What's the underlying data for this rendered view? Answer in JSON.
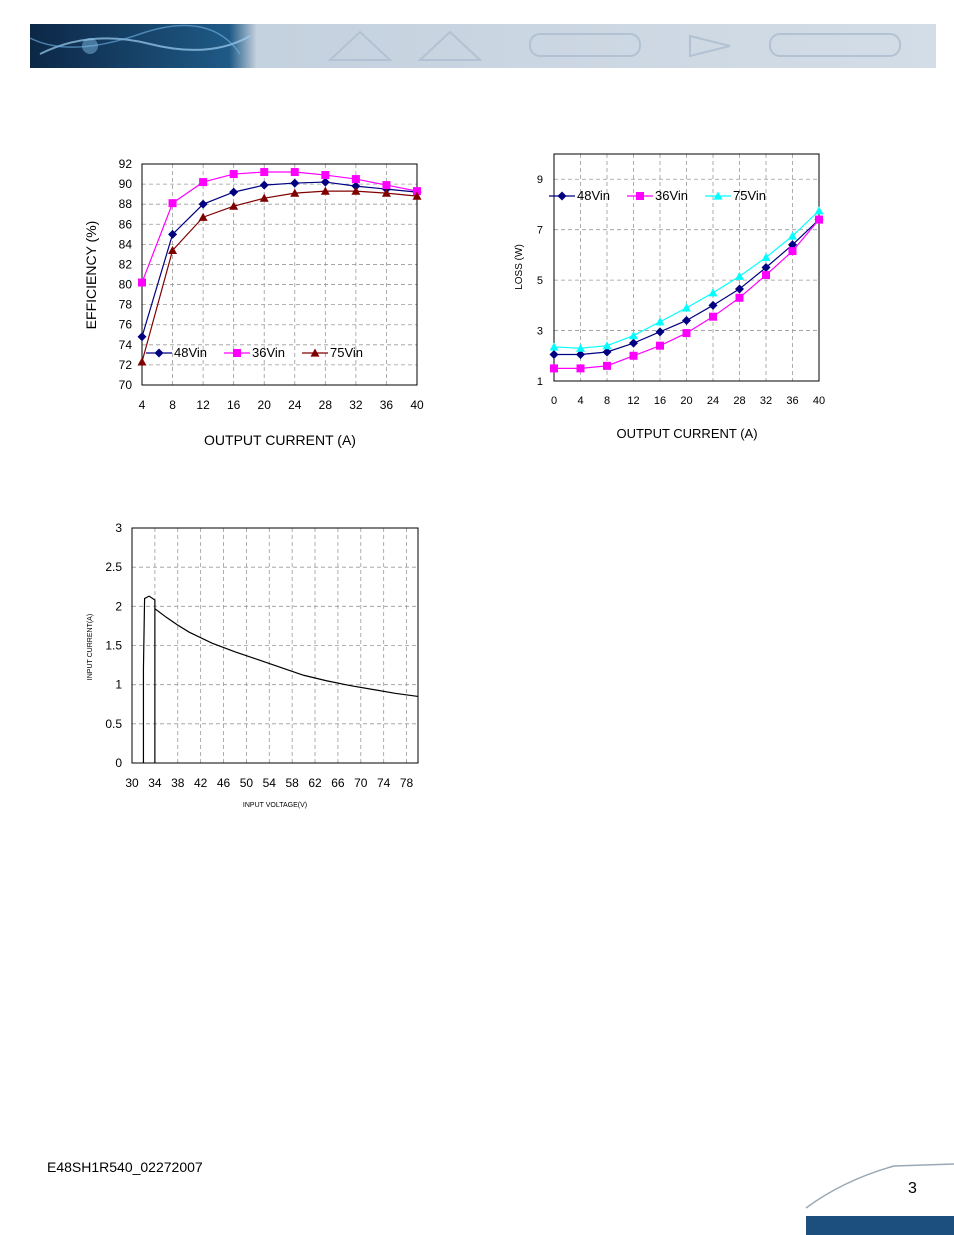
{
  "footer": {
    "doc_id": "E48SH1R540_02272007",
    "page_number": "3"
  },
  "colors": {
    "banner_dark": "#0f2f52",
    "banner_light": "#c9d6e3",
    "footer_bar": "#1d4f7e",
    "series_48": "#000080",
    "series_36": "#ff00ff",
    "series_75_eff": "#800000",
    "series_75_loss": "#00ffff"
  },
  "chart_data": [
    {
      "id": "efficiency",
      "type": "line",
      "title": "",
      "xlabel": "OUTPUT CURRENT (A)",
      "ylabel": "EFFICIENCY (%)",
      "x": [
        4,
        8,
        12,
        16,
        20,
        24,
        28,
        32,
        36,
        40
      ],
      "xlim": [
        4,
        40
      ],
      "ylim": [
        70,
        92
      ],
      "xticks": [
        "4",
        "8",
        "12",
        "16",
        "20",
        "24",
        "28",
        "32",
        "36",
        "40"
      ],
      "yticks": [
        "70",
        "72",
        "74",
        "76",
        "78",
        "80",
        "82",
        "84",
        "86",
        "88",
        "90",
        "92"
      ],
      "grid": true,
      "legend": "bottom",
      "series": [
        {
          "name": "48Vin",
          "color": "#000080",
          "marker": "diamond",
          "values": [
            74.8,
            85.0,
            88.0,
            89.2,
            89.9,
            90.1,
            90.2,
            89.8,
            89.5,
            89.2
          ]
        },
        {
          "name": "36Vin",
          "color": "#ff00ff",
          "marker": "square",
          "values": [
            80.2,
            88.1,
            90.2,
            91.0,
            91.2,
            91.2,
            90.9,
            90.5,
            89.9,
            89.3
          ]
        },
        {
          "name": "75Vin",
          "color": "#800000",
          "marker": "triangle",
          "values": [
            72.3,
            83.4,
            86.7,
            87.8,
            88.6,
            89.1,
            89.3,
            89.3,
            89.1,
            88.8
          ]
        }
      ]
    },
    {
      "id": "loss",
      "type": "line",
      "title": "",
      "xlabel": "OUTPUT CURRENT (A)",
      "ylabel": "LOSS (W)",
      "x": [
        0,
        4,
        8,
        12,
        16,
        20,
        24,
        28,
        32,
        36,
        40
      ],
      "xlim": [
        0,
        40
      ],
      "ylim": [
        1,
        10
      ],
      "xticks": [
        "0",
        "4",
        "8",
        "12",
        "16",
        "20",
        "24",
        "28",
        "32",
        "36",
        "40"
      ],
      "yticks": [
        "1",
        "3",
        "5",
        "7",
        "9"
      ],
      "grid": true,
      "legend": "top",
      "series": [
        {
          "name": "48Vin",
          "color": "#000080",
          "marker": "diamond",
          "values": [
            2.05,
            2.05,
            2.15,
            2.5,
            2.95,
            3.4,
            4.0,
            4.65,
            5.5,
            6.4,
            7.4
          ]
        },
        {
          "name": "36Vin",
          "color": "#ff00ff",
          "marker": "square",
          "values": [
            1.5,
            1.5,
            1.6,
            2.0,
            2.4,
            2.9,
            3.55,
            4.3,
            5.2,
            6.15,
            7.4
          ]
        },
        {
          "name": "75Vin",
          "color": "#00ffff",
          "marker": "triangle",
          "values": [
            2.35,
            2.3,
            2.4,
            2.8,
            3.35,
            3.9,
            4.5,
            5.15,
            5.9,
            6.75,
            7.75
          ]
        }
      ]
    },
    {
      "id": "input-current",
      "type": "line",
      "title": "",
      "xlabel": "INPUT VOLTAGE(V)",
      "ylabel": "INPUT CURRENT(A)",
      "xlim": [
        30,
        80
      ],
      "ylim": [
        0,
        3
      ],
      "xticks": [
        "30",
        "34",
        "38",
        "42",
        "46",
        "50",
        "54",
        "58",
        "62",
        "66",
        "70",
        "74",
        "78"
      ],
      "yticks": [
        "0",
        "0.5",
        "1",
        "1.5",
        "2",
        "2.5",
        "3"
      ],
      "grid": true,
      "series": [
        {
          "name": "",
          "color": "#000000",
          "x": [
            32,
            32,
            32.2,
            33,
            34,
            34,
            34,
            34,
            36,
            38,
            40,
            44,
            48,
            52,
            56,
            60,
            64,
            68,
            72,
            76,
            80
          ],
          "values": [
            0,
            1.2,
            2.1,
            2.13,
            2.08,
            0,
            2.08,
            1.97,
            1.86,
            1.76,
            1.67,
            1.53,
            1.42,
            1.32,
            1.22,
            1.12,
            1.05,
            0.99,
            0.94,
            0.89,
            0.85
          ]
        }
      ]
    }
  ]
}
